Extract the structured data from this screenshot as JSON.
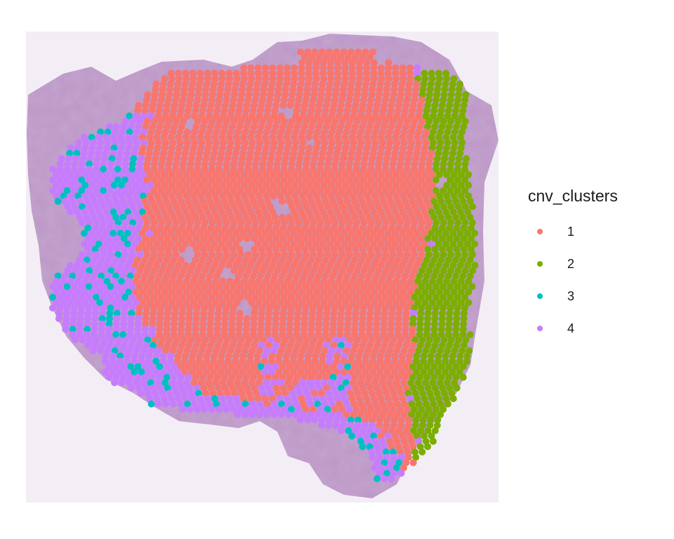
{
  "chart_data": {
    "type": "scatter",
    "title": "",
    "xlabel": "",
    "ylabel": "",
    "grid": false,
    "background": "histology tissue section (H&E stain)",
    "legend": {
      "title": "cnv_clusters",
      "position": "right",
      "entries": [
        {
          "label": "1",
          "color": "#F8766D"
        },
        {
          "label": "2",
          "color": "#7CAE00"
        },
        {
          "label": "3",
          "color": "#00BFC4"
        },
        {
          "label": "4",
          "color": "#C77CFF"
        }
      ]
    },
    "series": [
      {
        "name": "1",
        "color": "#F8766D",
        "approx_spot_count": 2600,
        "region": "central"
      },
      {
        "name": "2",
        "color": "#7CAE00",
        "approx_spot_count": 420,
        "region": "right edge"
      },
      {
        "name": "3",
        "color": "#00BFC4",
        "approx_spot_count": 90,
        "region": "scattered left and bottom"
      },
      {
        "name": "4",
        "color": "#C77CFF",
        "approx_spot_count": 520,
        "region": "left edge and bottom"
      }
    ]
  }
}
